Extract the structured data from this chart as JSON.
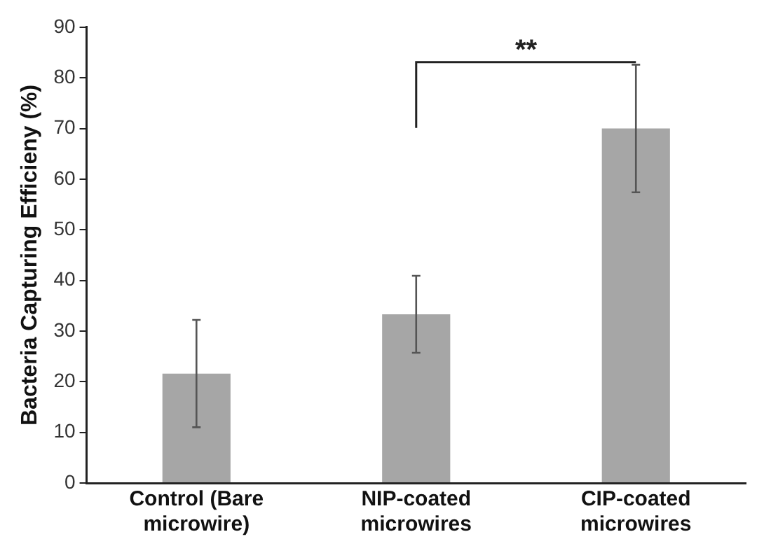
{
  "chart_data": {
    "type": "bar",
    "ylabel": "Bacteria Capturing Efficieny (%)",
    "categories": [
      "Control (Bare microwire)",
      "NIP-coated microwires",
      "CIP-coated microwires"
    ],
    "values": [
      21.6,
      33.3,
      70.0
    ],
    "errors": [
      10.6,
      7.6,
      12.6
    ],
    "color": "#a6a6a6",
    "ylim": [
      0,
      90
    ],
    "yticks": [
      0,
      10,
      20,
      30,
      40,
      50,
      60,
      70,
      80,
      90
    ],
    "grid": false,
    "legend": false,
    "annotations": [
      "**"
    ]
  }
}
